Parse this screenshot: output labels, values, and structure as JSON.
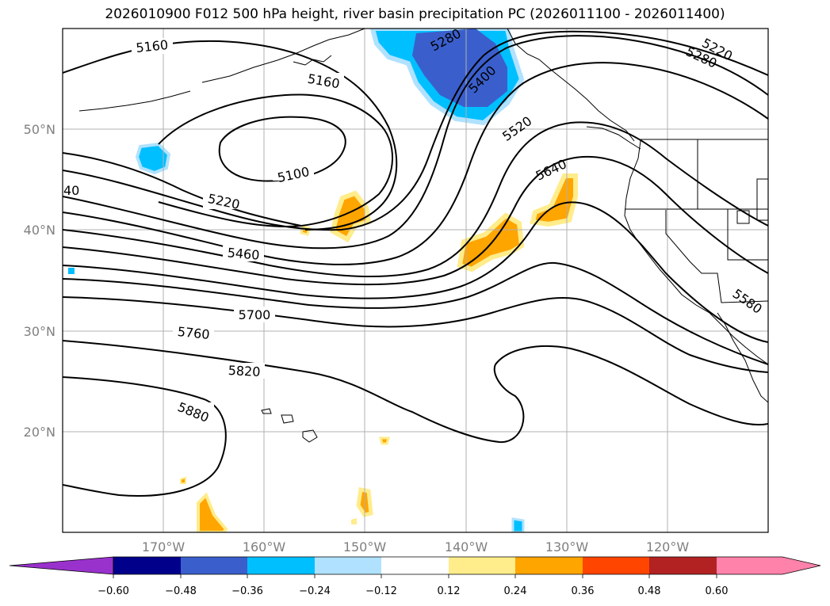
{
  "title": "2026010900 F012 500 hPa height, river basin precipitation PC (2026011100 - 2026011400)",
  "map": {
    "lat_labels": [
      "50°N",
      "40°N",
      "30°N",
      "20°N"
    ],
    "lon_labels": [
      "170°W",
      "160°W",
      "150°W",
      "140°W",
      "130°W",
      "120°W"
    ],
    "contour_labels": [
      "5160",
      "5160",
      "5280",
      "5400",
      "5220",
      "5280",
      "5100",
      "5220",
      "5520",
      "5640",
      "40",
      "5460",
      "5700",
      "5760",
      "5820",
      "5880",
      "5580"
    ],
    "gridline_color": "#b0b0b0"
  },
  "colorbar": {
    "ticks": [
      "−0.60",
      "−0.48",
      "−0.36",
      "−0.24",
      "−0.12",
      "0.12",
      "0.24",
      "0.36",
      "0.48",
      "0.60"
    ],
    "colors": [
      "#9932cc",
      "#00008b",
      "#3a5fcd",
      "#00bfff",
      "#b0e2ff",
      "#ffffff",
      "#ffec8b",
      "#ffa500",
      "#ff4500",
      "#b22222",
      "#ff82ab",
      "#ff82ab"
    ]
  }
}
